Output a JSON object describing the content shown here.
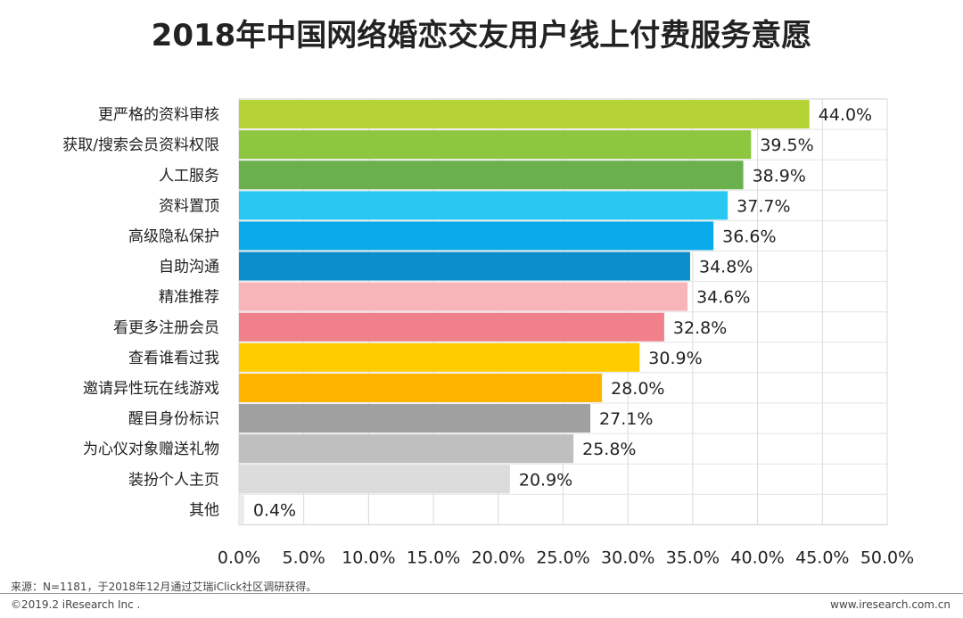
{
  "chart_data": {
    "type": "bar",
    "orientation": "horizontal",
    "title": "2018年中国网络婚恋交友用户线上付费服务意愿",
    "categories": [
      "更严格的资料审核",
      "获取/搜索会员资料权限",
      "人工服务",
      "资料置顶",
      "高级隐私保护",
      "自助沟通",
      "精准推荐",
      "看更多注册会员",
      "查看谁看过我",
      "邀请异性玩在线游戏",
      "醒目身份标识",
      "为心仪对象赠送礼物",
      "装扮个人主页",
      "其他"
    ],
    "values": [
      44.0,
      39.5,
      38.9,
      37.7,
      36.6,
      34.8,
      34.6,
      32.8,
      30.9,
      28.0,
      27.1,
      25.8,
      20.9,
      0.4
    ],
    "value_labels": [
      "44.0%",
      "39.5%",
      "38.9%",
      "37.7%",
      "36.6%",
      "34.8%",
      "34.6%",
      "32.8%",
      "30.9%",
      "28.0%",
      "27.1%",
      "25.8%",
      "20.9%",
      "0.4%"
    ],
    "colors": [
      "#b5d334",
      "#8dc63f",
      "#6ab04c",
      "#29c8f3",
      "#08aaea",
      "#0a8fcc",
      "#f7b5b9",
      "#f0808a",
      "#ffcc00",
      "#ffb400",
      "#a0a0a0",
      "#bfbfbf",
      "#dcdcdc",
      "#ebebeb"
    ],
    "xlim": [
      0,
      50
    ],
    "x_ticks": [
      "0.0%",
      "5.0%",
      "10.0%",
      "15.0%",
      "20.0%",
      "25.0%",
      "30.0%",
      "35.0%",
      "40.0%",
      "45.0%",
      "50.0%"
    ],
    "grid": true
  },
  "footer": {
    "source": "来源：N=1181，于2018年12月通过艾瑞iClick社区调研获得。",
    "copyright": "©2019.2 iResearch Inc .",
    "website": "www.iresearch.com.cn"
  }
}
